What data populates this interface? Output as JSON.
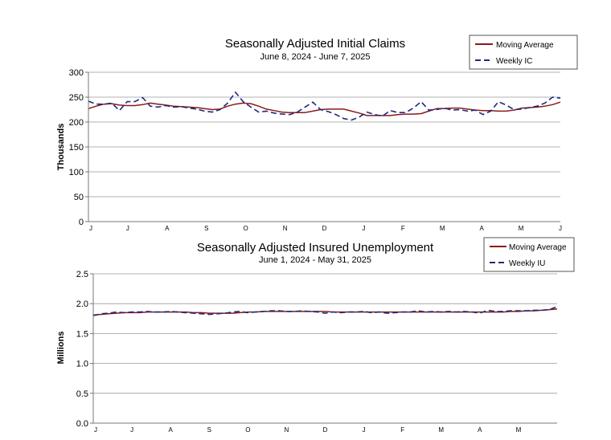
{
  "colors": {
    "moving_average": "#8b1a1a",
    "weekly": "#1f2a80",
    "grid": "#9a9a9a",
    "axis": "#777777",
    "text": "#000000"
  },
  "chart_data": [
    {
      "type": "line",
      "title": "Seasonally Adjusted Initial Claims",
      "subtitle": "June 8, 2024 - June 7, 2025",
      "ylabel": "Thousands",
      "xlabel": "",
      "ylim": [
        0,
        300
      ],
      "yticks": [
        "0",
        "50",
        "100",
        "150",
        "200",
        "250",
        "300"
      ],
      "xticks": [
        "J",
        "J",
        "A",
        "S",
        "O",
        "N",
        "D",
        "J",
        "F",
        "M",
        "A",
        "M",
        "J"
      ],
      "grid": true,
      "legend_position": "top-right",
      "series": [
        {
          "name": "Moving Average",
          "style": "solid",
          "values": [
            227,
            232,
            236,
            237,
            234,
            233,
            233,
            235,
            238,
            236,
            234,
            232,
            231,
            230,
            229,
            227,
            225,
            226,
            232,
            236,
            238,
            237,
            232,
            226,
            223,
            220,
            219,
            219,
            219,
            222,
            225,
            226,
            226,
            226,
            222,
            218,
            213,
            213,
            213,
            213,
            215,
            216,
            216,
            217,
            222,
            227,
            227,
            228,
            228,
            226,
            224,
            223,
            223,
            222,
            222,
            224,
            228,
            229,
            230,
            232,
            235,
            240
          ]
        },
        {
          "name": "Weekly IC",
          "style": "dashed",
          "values": [
            242,
            236,
            236,
            238,
            223,
            241,
            241,
            249,
            232,
            230,
            233,
            230,
            231,
            228,
            226,
            222,
            220,
            225,
            238,
            260,
            241,
            230,
            220,
            222,
            218,
            216,
            215,
            220,
            230,
            240,
            225,
            221,
            215,
            207,
            204,
            210,
            220,
            215,
            212,
            223,
            219,
            219,
            228,
            241,
            224,
            225,
            228,
            224,
            225,
            222,
            224,
            215,
            222,
            241,
            234,
            225,
            226,
            229,
            232,
            238,
            250,
            248
          ]
        }
      ]
    },
    {
      "type": "line",
      "title": "Seasonally Adjusted Insured Unemployment",
      "subtitle": "June 1, 2024 - May 31, 2025",
      "ylabel": "Millions",
      "xlabel": "",
      "ylim": [
        0,
        2.5
      ],
      "yticks": [
        "0.0",
        "0.5",
        "1.0",
        "1.5",
        "2.0",
        "2.5"
      ],
      "xticks": [
        "J",
        "J",
        "A",
        "S",
        "O",
        "N",
        "D",
        "J",
        "F",
        "M",
        "A",
        "M"
      ],
      "grid": true,
      "legend_position": "top-right",
      "series": [
        {
          "name": "Moving Average",
          "style": "solid",
          "values": [
            1.81,
            1.82,
            1.83,
            1.84,
            1.85,
            1.85,
            1.85,
            1.86,
            1.86,
            1.86,
            1.86,
            1.86,
            1.86,
            1.85,
            1.85,
            1.84,
            1.84,
            1.84,
            1.84,
            1.85,
            1.86,
            1.86,
            1.87,
            1.87,
            1.87,
            1.87,
            1.87,
            1.87,
            1.87,
            1.87,
            1.87,
            1.86,
            1.86,
            1.86,
            1.86,
            1.86,
            1.86,
            1.86,
            1.86,
            1.86,
            1.86,
            1.86,
            1.86,
            1.86,
            1.86,
            1.86,
            1.86,
            1.86,
            1.86,
            1.86,
            1.86,
            1.86,
            1.86,
            1.86,
            1.87,
            1.87,
            1.88,
            1.88,
            1.89,
            1.9,
            1.91
          ]
        },
        {
          "name": "Weekly IU",
          "style": "dashed",
          "values": [
            1.8,
            1.83,
            1.84,
            1.86,
            1.85,
            1.86,
            1.86,
            1.87,
            1.86,
            1.86,
            1.87,
            1.86,
            1.85,
            1.84,
            1.83,
            1.82,
            1.83,
            1.84,
            1.86,
            1.87,
            1.85,
            1.86,
            1.87,
            1.88,
            1.88,
            1.87,
            1.87,
            1.88,
            1.87,
            1.86,
            1.84,
            1.86,
            1.85,
            1.86,
            1.86,
            1.87,
            1.85,
            1.86,
            1.84,
            1.85,
            1.86,
            1.86,
            1.88,
            1.86,
            1.87,
            1.86,
            1.87,
            1.86,
            1.87,
            1.86,
            1.84,
            1.89,
            1.87,
            1.87,
            1.88,
            1.88,
            1.88,
            1.89,
            1.89,
            1.9,
            1.95
          ]
        }
      ]
    }
  ]
}
